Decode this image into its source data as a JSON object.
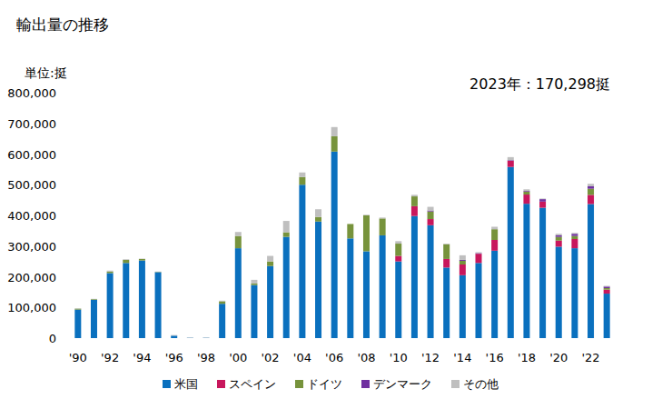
{
  "chart_data": {
    "type": "bar",
    "title": "輸出量の推移",
    "y_label": "単位:挺",
    "annotation": "2023年：170,298挺",
    "stacked": true,
    "grid": false,
    "legend": "bottom",
    "categories": [
      "'90",
      null,
      "'92",
      null,
      "'94",
      null,
      "'96",
      null,
      "'98",
      null,
      "'00",
      null,
      "'02",
      null,
      "'04",
      null,
      "'06",
      null,
      "'08",
      null,
      "'10",
      null,
      "'12",
      null,
      "'14",
      null,
      "'16",
      null,
      "'18",
      null,
      "'20",
      null,
      "'22",
      null
    ],
    "ylim": [
      0,
      800000
    ],
    "yticks": [
      0,
      {
        "value": 100000,
        "label": "100,000"
      },
      {
        "value": 200000,
        "label": "200,000"
      },
      {
        "value": 300000,
        "label": "300,000"
      },
      {
        "value": 400000,
        "label": "400,000"
      },
      {
        "value": 500000,
        "label": "500,000"
      },
      {
        "value": 600000,
        "label": "600,000"
      },
      {
        "value": 700000,
        "label": "700,000"
      },
      {
        "value": 800000,
        "label": "800,000"
      }
    ],
    "series": [
      {
        "name": "米国",
        "color": "#0a70be",
        "values": [
          93000,
          125000,
          212000,
          245000,
          253000,
          215000,
          8000,
          1000,
          1000,
          112000,
          293000,
          173000,
          235000,
          330000,
          500000,
          380000,
          608000,
          325000,
          283000,
          335000,
          250000,
          398000,
          368000,
          230000,
          205000,
          245000,
          285000,
          558000,
          438000,
          425000,
          298000,
          293000,
          437000,
          145000
        ]
      },
      {
        "name": "スペイン",
        "color": "#c8175c",
        "values": [
          0,
          0,
          0,
          0,
          0,
          0,
          0,
          0,
          0,
          0,
          0,
          0,
          0,
          0,
          0,
          0,
          0,
          0,
          0,
          0,
          18000,
          32000,
          20000,
          28000,
          35000,
          30000,
          35000,
          20000,
          30000,
          20000,
          20000,
          30000,
          30000,
          13000
        ]
      },
      {
        "name": "ドイツ",
        "color": "#77933c",
        "values": [
          3000,
          2000,
          5000,
          10000,
          5000,
          1000,
          0,
          0,
          0,
          8000,
          40000,
          5000,
          15000,
          15000,
          25000,
          15000,
          50000,
          47000,
          117000,
          55000,
          40000,
          32000,
          25000,
          48000,
          12000,
          0,
          35000,
          0,
          10000,
          0,
          12000,
          10000,
          20000,
          5000
        ]
      },
      {
        "name": "デンマーク",
        "color": "#7030a0",
        "values": [
          0,
          0,
          0,
          0,
          0,
          0,
          0,
          0,
          0,
          0,
          0,
          0,
          0,
          0,
          0,
          0,
          0,
          0,
          0,
          0,
          0,
          0,
          3000,
          0,
          3000,
          2000,
          0,
          2000,
          2000,
          8000,
          5000,
          7000,
          8000,
          5000
        ]
      },
      {
        "name": "その他",
        "color": "#bfbfbf",
        "values": [
          1000,
          1000,
          3000,
          2000,
          1000,
          1000,
          2000,
          1000,
          1000,
          2000,
          13000,
          12000,
          18000,
          37000,
          15000,
          25000,
          30000,
          0,
          2000,
          3000,
          8000,
          5000,
          12000,
          2000,
          15000,
          3000,
          8000,
          10000,
          5000,
          2000,
          5000,
          3000,
          8000,
          2298
        ]
      }
    ]
  }
}
